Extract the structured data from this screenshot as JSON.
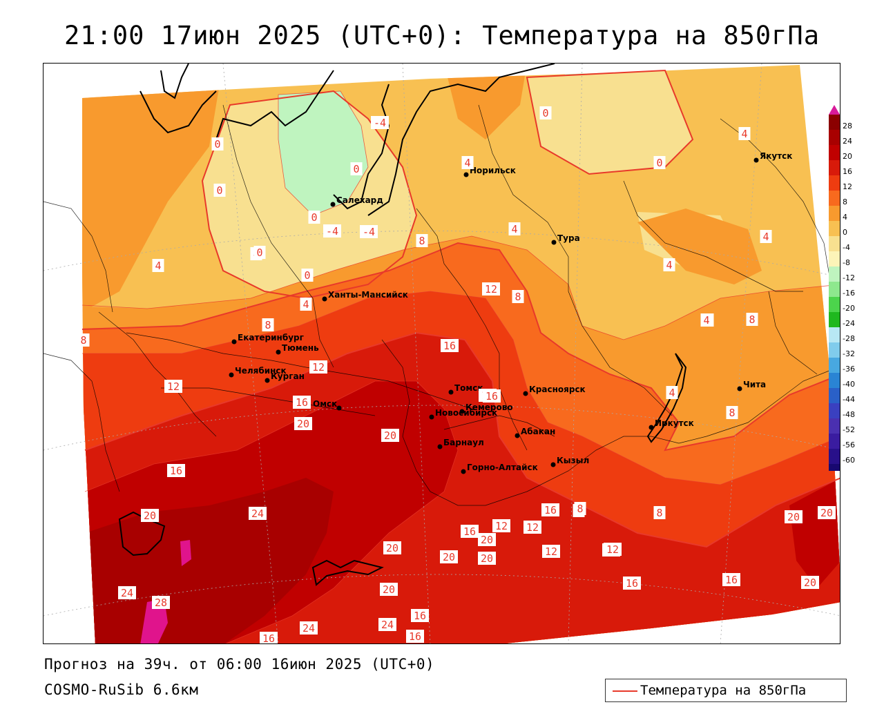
{
  "title": "21:00 17июн 2025 (UTC+0): Температура на 850гПа",
  "forecast_info": "Прогноз на 39ч. от 06:00 16июн 2025 (UTC+0)",
  "model": "COSMO-RuSib 6.6км",
  "legend": {
    "label": "Температура на 850гПа",
    "line_color": "#e8392a"
  },
  "colorbar": {
    "labels": [
      "28",
      "24",
      "20",
      "16",
      "12",
      "8",
      "4",
      "0",
      "-4",
      "-8",
      "-12",
      "-16",
      "-20",
      "-24",
      "-28",
      "-32",
      "-36",
      "-40",
      "-44",
      "-48",
      "-52",
      "-56",
      "-60"
    ],
    "colors": [
      "#8b0000",
      "#a80000",
      "#c00000",
      "#d81a0a",
      "#ee3c10",
      "#f86a1e",
      "#f89a2e",
      "#f8c052",
      "#f8e090",
      "#fcf4b8",
      "#bff4bf",
      "#8ee88e",
      "#4cd44c",
      "#1fb81f",
      "#b8e8f4",
      "#80ccec",
      "#48a8e0",
      "#2a84d4",
      "#2a60c8",
      "#3a40c0",
      "#4a30b0",
      "#3a1ca0",
      "#28108a",
      "#180870"
    ],
    "top_color": "#d81a9a"
  },
  "cities": [
    {
      "name": "Норильск"
    },
    {
      "name": "Якутск"
    },
    {
      "name": "Салехард"
    },
    {
      "name": "Тура"
    },
    {
      "name": "Ханты-Мансийск"
    },
    {
      "name": "Екатеринбург"
    },
    {
      "name": "Тюмень"
    },
    {
      "name": "Челябинск"
    },
    {
      "name": "Курган"
    },
    {
      "name": "Омск"
    },
    {
      "name": "Новосибирск"
    },
    {
      "name": "Томск"
    },
    {
      "name": "Кемерово"
    },
    {
      "name": "Красноярск"
    },
    {
      "name": "Барнаул"
    },
    {
      "name": "Абакан"
    },
    {
      "name": "Горно-Алтайск"
    },
    {
      "name": "Кызыл"
    },
    {
      "name": "Иркутск"
    },
    {
      "name": "Чита"
    }
  ],
  "contour_labels": [
    "0",
    "0",
    "0",
    "0",
    "-4",
    "-4",
    "4",
    "4",
    "0",
    "0",
    "-4",
    "4",
    "0",
    "4",
    "8",
    "4",
    "8",
    "4",
    "0",
    "4",
    "8",
    "4",
    "12",
    "8",
    "8",
    "12",
    "12",
    "16",
    "16",
    "12",
    "16",
    "20",
    "20",
    "16",
    "20",
    "24",
    "24",
    "28",
    "16",
    "24",
    "24",
    "16",
    "20",
    "20",
    "16",
    "12",
    "16",
    "12",
    "8",
    "12",
    "8",
    "8",
    "12",
    "20",
    "12",
    "20",
    "16",
    "16",
    "20",
    "20",
    "20",
    "16",
    "20",
    "4",
    "8",
    "4",
    "4"
  ]
}
